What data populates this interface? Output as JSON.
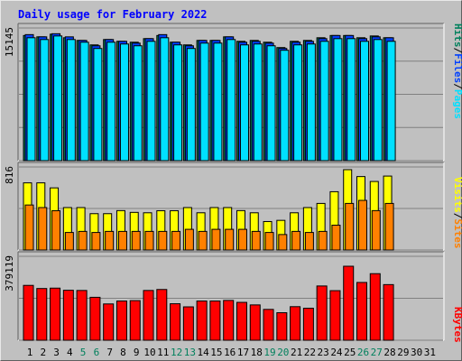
{
  "title": "Daily usage for February 2022",
  "colors": {
    "title": "#0000ff",
    "hits": "#00805c",
    "files": "#0040ff",
    "pages": "#00e0ff",
    "visits": "#ffff00",
    "sites": "#ff8000",
    "kbytes": "#ff0000",
    "weekend_day": "#00805c",
    "weekday": "#000000",
    "panel_bg": "#c0c0c0",
    "grid": "#808080"
  },
  "chart_data": [
    {
      "type": "bar",
      "name": "hits-files-pages",
      "ymax_label": "15145",
      "ymax": 15145,
      "side_label_parts": [
        "Pages",
        "/",
        "Files",
        "/",
        "Hits"
      ],
      "x": [
        1,
        2,
        3,
        4,
        5,
        6,
        7,
        8,
        9,
        10,
        11,
        12,
        13,
        14,
        15,
        16,
        17,
        18,
        19,
        20,
        21,
        22,
        23,
        24,
        25,
        26,
        27,
        28
      ],
      "series": [
        {
          "name": "Hits",
          "values": [
            14000,
            13850,
            14150,
            13750,
            13450,
            12950,
            13550,
            13350,
            13250,
            13650,
            14000,
            13250,
            12950,
            13450,
            13450,
            13850,
            13350,
            13450,
            13250,
            12650,
            13350,
            13450,
            13750,
            14000,
            14000,
            13750,
            13950,
            13750
          ]
        },
        {
          "name": "Files",
          "values": [
            14100,
            13850,
            14200,
            13850,
            13450,
            12850,
            13550,
            13350,
            13150,
            13650,
            14100,
            13250,
            12850,
            13450,
            13450,
            13850,
            13250,
            13350,
            13150,
            12550,
            13250,
            13350,
            13650,
            14000,
            14000,
            13650,
            13850,
            13750
          ]
        },
        {
          "name": "Pages",
          "values": [
            13750,
            13550,
            13950,
            13550,
            13250,
            12550,
            13250,
            13050,
            12850,
            13350,
            13750,
            12950,
            12550,
            13150,
            13150,
            13550,
            12950,
            13050,
            12850,
            12350,
            12950,
            13050,
            13350,
            13650,
            13650,
            13350,
            13550,
            13350
          ]
        }
      ]
    },
    {
      "type": "bar",
      "name": "visits-sites",
      "ymax_label": "816",
      "ymax": 816,
      "side_label_parts": [
        "Sites",
        "/",
        "Visits"
      ],
      "x": [
        1,
        2,
        3,
        4,
        5,
        6,
        7,
        8,
        9,
        10,
        11,
        12,
        13,
        14,
        15,
        16,
        17,
        18,
        19,
        20,
        21,
        22,
        23,
        24,
        25,
        26,
        27,
        28
      ],
      "series": [
        {
          "name": "Visits",
          "values": [
            682,
            682,
            631,
            431,
            431,
            369,
            369,
            400,
            382,
            378,
            399,
            399,
            431,
            378,
            431,
            431,
            400,
            378,
            289,
            301,
            378,
            431,
            473,
            592,
            816,
            746,
            696,
            751
          ]
        },
        {
          "name": "Sites",
          "values": [
            457,
            431,
            399,
            178,
            189,
            178,
            189,
            189,
            189,
            189,
            189,
            189,
            210,
            189,
            210,
            210,
            210,
            189,
            178,
            157,
            189,
            178,
            189,
            252,
            473,
            504,
            400,
            473
          ]
        }
      ]
    },
    {
      "type": "bar",
      "name": "kbytes",
      "ymax_label": "379119",
      "ymax": 379119,
      "side_label_parts": [
        "KBytes"
      ],
      "x": [
        1,
        2,
        3,
        4,
        5,
        6,
        7,
        8,
        9,
        10,
        11,
        12,
        13,
        14,
        15,
        16,
        17,
        18,
        19,
        20,
        21,
        22,
        23,
        24,
        25,
        26,
        27,
        28
      ],
      "series": [
        {
          "name": "KBytes",
          "values": [
            281000,
            265000,
            267000,
            256000,
            255000,
            220000,
            186000,
            201000,
            203000,
            255000,
            260000,
            187000,
            171000,
            201000,
            201000,
            204000,
            194000,
            181000,
            158000,
            141000,
            172000,
            164000,
            278000,
            254000,
            379119,
            296000,
            341000,
            285000
          ]
        }
      ]
    }
  ],
  "x_labels": [
    {
      "t": "1",
      "weekend": false
    },
    {
      "t": "2",
      "weekend": false
    },
    {
      "t": "3",
      "weekend": false
    },
    {
      "t": "4",
      "weekend": false
    },
    {
      "t": "5",
      "weekend": true
    },
    {
      "t": "6",
      "weekend": true
    },
    {
      "t": "7",
      "weekend": false
    },
    {
      "t": "8",
      "weekend": false
    },
    {
      "t": "9",
      "weekend": false
    },
    {
      "t": "10",
      "weekend": false
    },
    {
      "t": "11",
      "weekend": false
    },
    {
      "t": "12",
      "weekend": true
    },
    {
      "t": "13",
      "weekend": true
    },
    {
      "t": "14",
      "weekend": false
    },
    {
      "t": "15",
      "weekend": false
    },
    {
      "t": "16",
      "weekend": false
    },
    {
      "t": "17",
      "weekend": false
    },
    {
      "t": "18",
      "weekend": false
    },
    {
      "t": "19",
      "weekend": true
    },
    {
      "t": "20",
      "weekend": true
    },
    {
      "t": "21",
      "weekend": false
    },
    {
      "t": "22",
      "weekend": false
    },
    {
      "t": "23",
      "weekend": false
    },
    {
      "t": "24",
      "weekend": false
    },
    {
      "t": "25",
      "weekend": false
    },
    {
      "t": "26",
      "weekend": true
    },
    {
      "t": "27",
      "weekend": true
    },
    {
      "t": "28",
      "weekend": false
    },
    {
      "t": "29",
      "weekend": false
    },
    {
      "t": "30",
      "weekend": false
    },
    {
      "t": "31",
      "weekend": false
    }
  ]
}
